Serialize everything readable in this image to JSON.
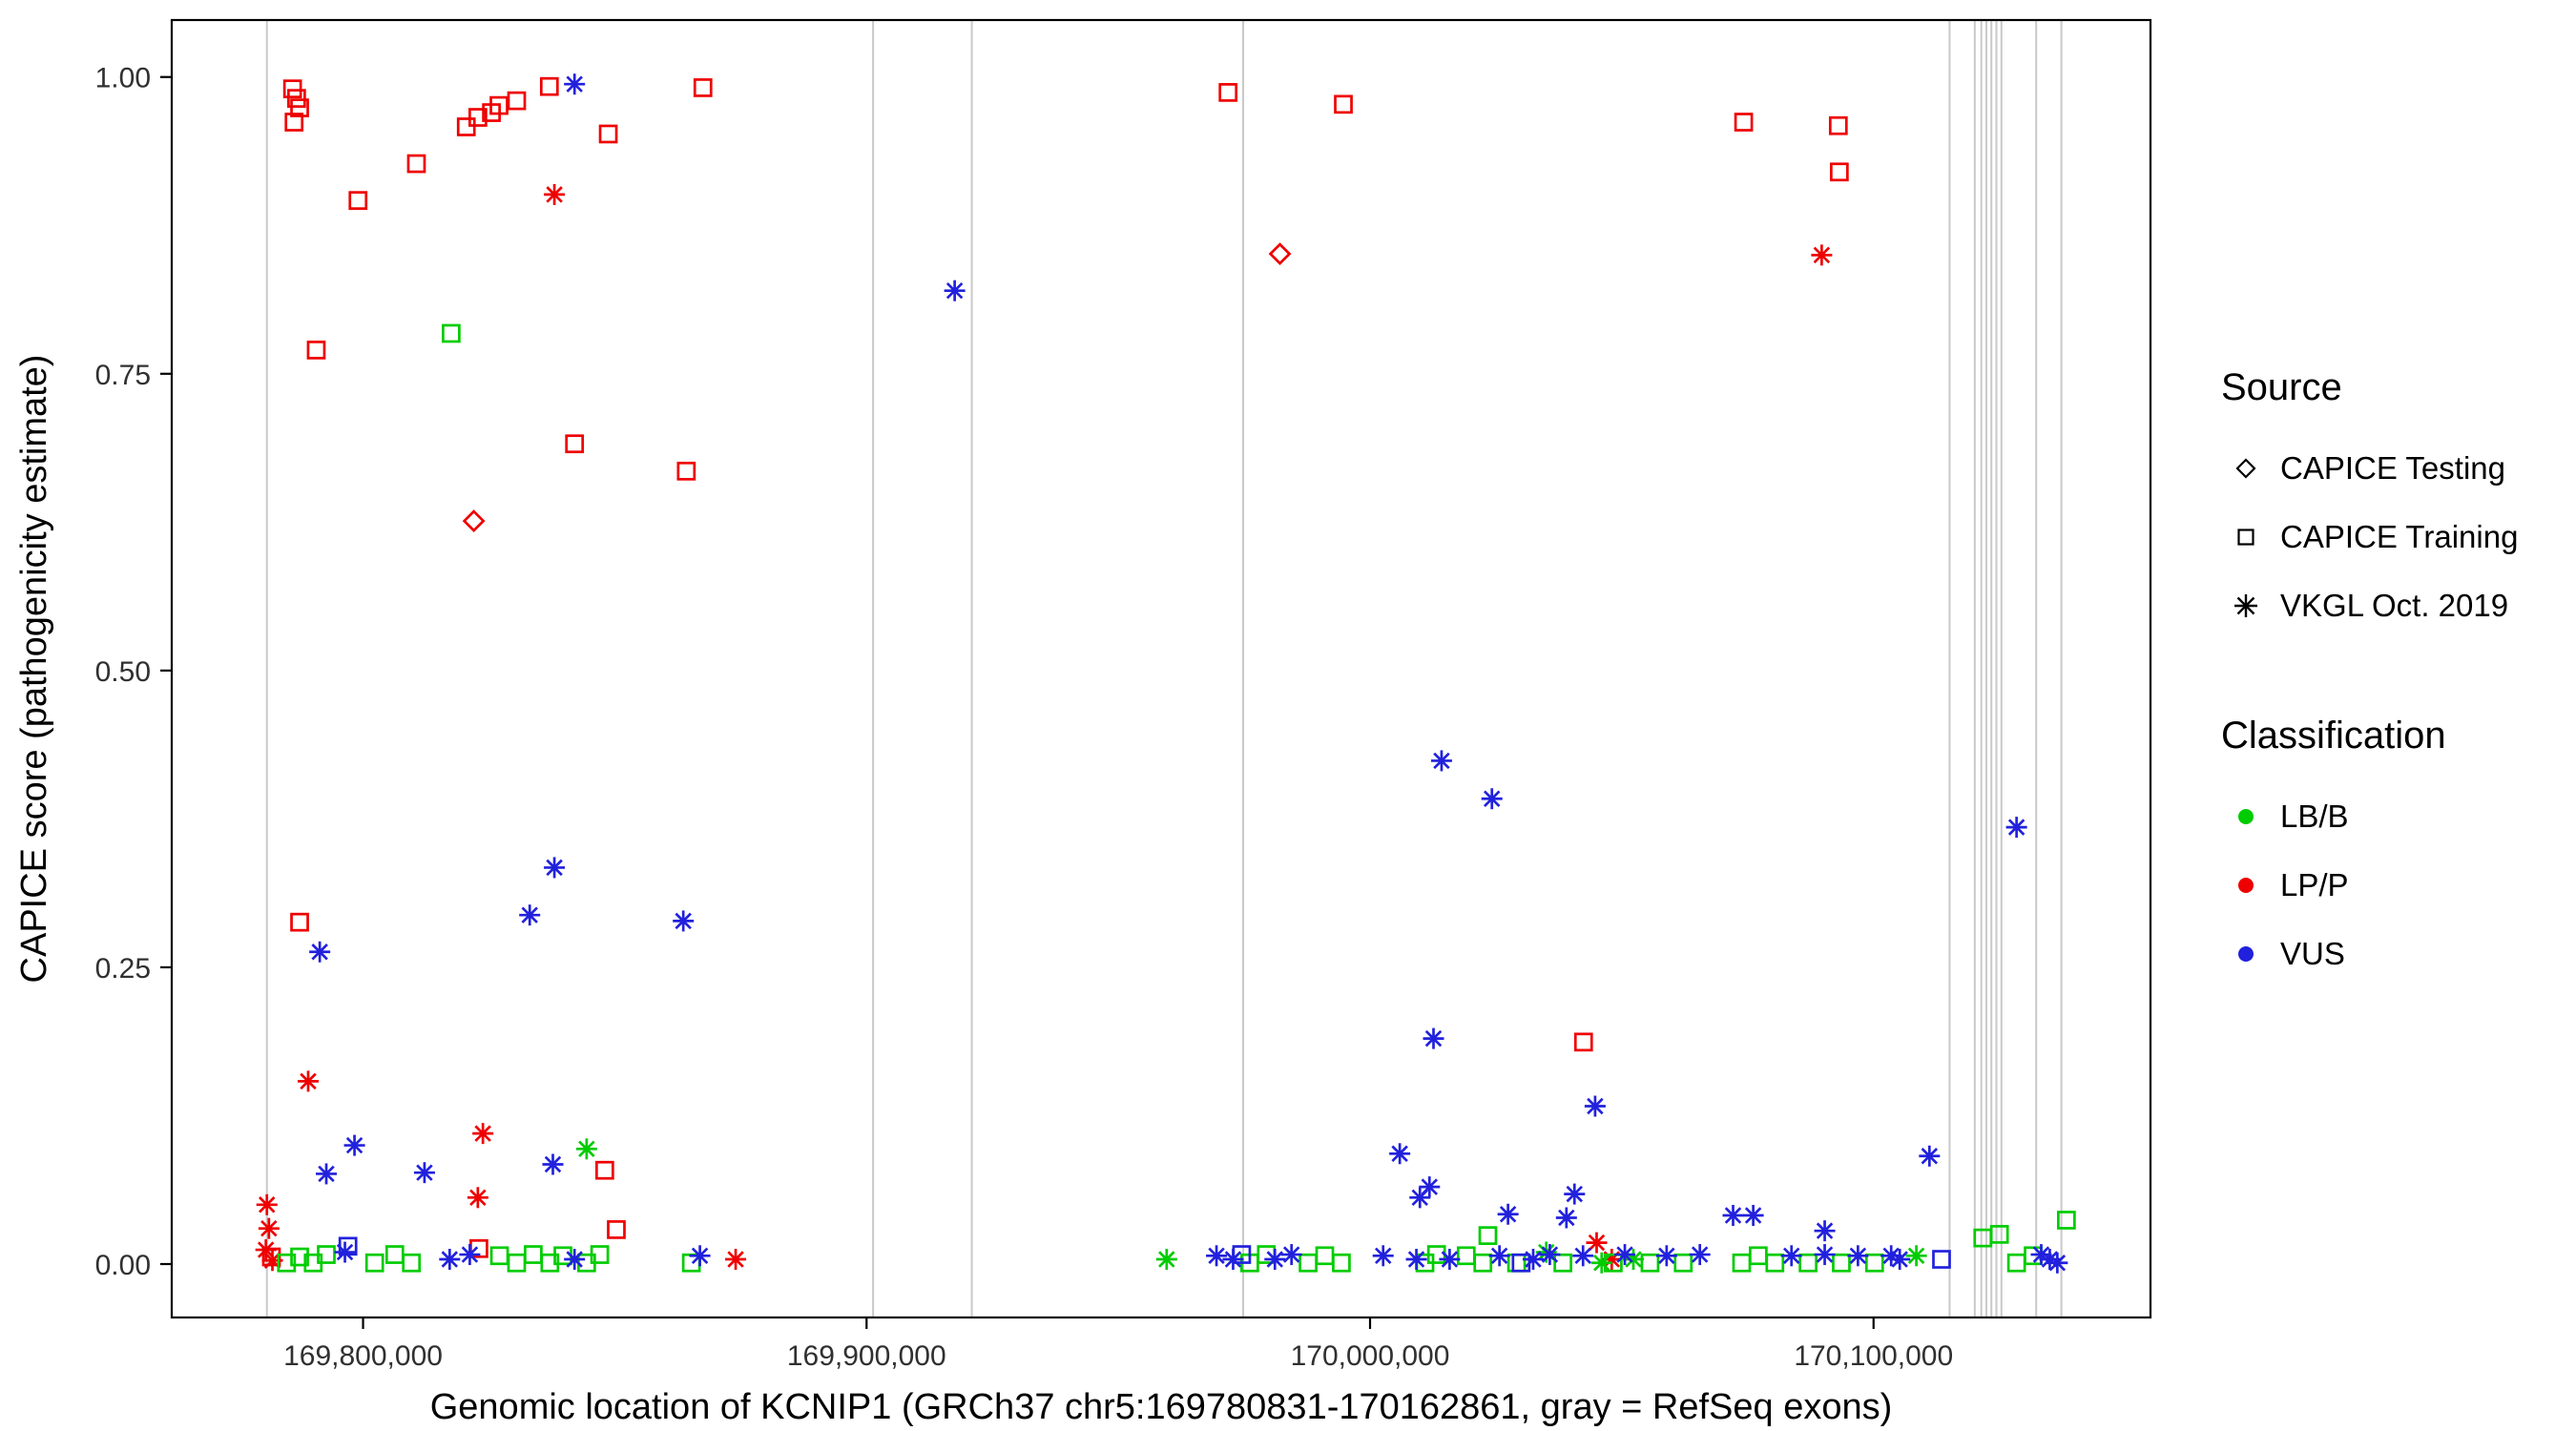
{
  "chart_data": {
    "type": "scatter",
    "title": "",
    "xlabel": "Genomic location of KCNIP1 (GRCh37 chr5:169780831-170162861, gray = RefSeq exons)",
    "ylabel": "CAPICE score (pathogenicity estimate)",
    "xlim": [
      169762000,
      170155000
    ],
    "ylim": [
      -0.045,
      1.048
    ],
    "x_ticks": [
      {
        "value": 169800000,
        "label": "169,800,000"
      },
      {
        "value": 169900000,
        "label": "169,900,000"
      },
      {
        "value": 170000000,
        "label": "170,000,000"
      },
      {
        "value": 170100000,
        "label": "170,100,000"
      }
    ],
    "y_ticks": [
      {
        "value": 0.0,
        "label": "0.00"
      },
      {
        "value": 0.25,
        "label": "0.25"
      },
      {
        "value": 0.5,
        "label": "0.50"
      },
      {
        "value": 0.75,
        "label": "0.75"
      },
      {
        "value": 1.0,
        "label": "1.00"
      }
    ],
    "exon_color": "#c9c9c9",
    "exon_positions": [
      169780900,
      169901300,
      169920900,
      169974800,
      170115100,
      170120100,
      170121400,
      170122400,
      170123400,
      170124400,
      170125400,
      170132300,
      170137300
    ],
    "colors": {
      "LB/B": "#00cc00",
      "LP/P": "#ee0000",
      "VUS": "#2121dd"
    },
    "legend": {
      "source_title": "Source",
      "source_items": [
        {
          "label": "CAPICE Testing",
          "shape": "diamond"
        },
        {
          "label": "CAPICE Training",
          "shape": "square"
        },
        {
          "label": "VKGL Oct. 2019",
          "shape": "asterisk"
        }
      ],
      "classification_title": "Classification",
      "classification_items": [
        {
          "label": "LB/B",
          "color": "#00cc00"
        },
        {
          "label": "LP/P",
          "color": "#ee0000"
        },
        {
          "label": "VUS",
          "color": "#2121dd"
        }
      ]
    },
    "points": [
      {
        "x": 169786000,
        "y": 0.99,
        "shape": "square",
        "class": "LP/P"
      },
      {
        "x": 169786800,
        "y": 0.982,
        "shape": "square",
        "class": "LP/P"
      },
      {
        "x": 169787400,
        "y": 0.974,
        "shape": "square",
        "class": "LP/P"
      },
      {
        "x": 169786300,
        "y": 0.962,
        "shape": "square",
        "class": "LP/P"
      },
      {
        "x": 169799000,
        "y": 0.896,
        "shape": "square",
        "class": "LP/P"
      },
      {
        "x": 169790700,
        "y": 0.77,
        "shape": "square",
        "class": "LP/P"
      },
      {
        "x": 169810600,
        "y": 0.927,
        "shape": "square",
        "class": "LP/P"
      },
      {
        "x": 169820500,
        "y": 0.958,
        "shape": "square",
        "class": "LP/P"
      },
      {
        "x": 169822800,
        "y": 0.966,
        "shape": "square",
        "class": "LP/P"
      },
      {
        "x": 169825500,
        "y": 0.97,
        "shape": "square",
        "class": "LP/P"
      },
      {
        "x": 169827000,
        "y": 0.976,
        "shape": "square",
        "class": "LP/P"
      },
      {
        "x": 169830500,
        "y": 0.98,
        "shape": "square",
        "class": "LP/P"
      },
      {
        "x": 169837000,
        "y": 0.992,
        "shape": "square",
        "class": "LP/P"
      },
      {
        "x": 169848700,
        "y": 0.952,
        "shape": "square",
        "class": "LP/P"
      },
      {
        "x": 169842000,
        "y": 0.691,
        "shape": "square",
        "class": "LP/P"
      },
      {
        "x": 169864200,
        "y": 0.668,
        "shape": "square",
        "class": "LP/P"
      },
      {
        "x": 169867500,
        "y": 0.991,
        "shape": "square",
        "class": "LP/P"
      },
      {
        "x": 169971800,
        "y": 0.987,
        "shape": "square",
        "class": "LP/P"
      },
      {
        "x": 169994700,
        "y": 0.977,
        "shape": "square",
        "class": "LP/P"
      },
      {
        "x": 170074200,
        "y": 0.962,
        "shape": "square",
        "class": "LP/P"
      },
      {
        "x": 170093000,
        "y": 0.959,
        "shape": "square",
        "class": "LP/P"
      },
      {
        "x": 170093200,
        "y": 0.92,
        "shape": "square",
        "class": "LP/P"
      },
      {
        "x": 169787400,
        "y": 0.288,
        "shape": "square",
        "class": "LP/P"
      },
      {
        "x": 170042400,
        "y": 0.187,
        "shape": "square",
        "class": "LP/P"
      },
      {
        "x": 169848000,
        "y": 0.079,
        "shape": "square",
        "class": "LP/P"
      },
      {
        "x": 169850300,
        "y": 0.029,
        "shape": "square",
        "class": "LP/P"
      },
      {
        "x": 169781800,
        "y": 0.006,
        "shape": "square",
        "class": "LP/P"
      },
      {
        "x": 169823000,
        "y": 0.013,
        "shape": "square",
        "class": "LP/P"
      },
      {
        "x": 169822000,
        "y": 0.626,
        "shape": "diamond",
        "class": "LP/P"
      },
      {
        "x": 169982100,
        "y": 0.851,
        "shape": "diamond",
        "class": "LP/P"
      },
      {
        "x": 169838000,
        "y": 0.901,
        "shape": "asterisk",
        "class": "LP/P"
      },
      {
        "x": 170089700,
        "y": 0.85,
        "shape": "asterisk",
        "class": "LP/P"
      },
      {
        "x": 169789100,
        "y": 0.154,
        "shape": "asterisk",
        "class": "LP/P"
      },
      {
        "x": 169823800,
        "y": 0.11,
        "shape": "asterisk",
        "class": "LP/P"
      },
      {
        "x": 169822800,
        "y": 0.056,
        "shape": "asterisk",
        "class": "LP/P"
      },
      {
        "x": 169780900,
        "y": 0.05,
        "shape": "asterisk",
        "class": "LP/P"
      },
      {
        "x": 169781300,
        "y": 0.03,
        "shape": "asterisk",
        "class": "LP/P"
      },
      {
        "x": 169780700,
        "y": 0.012,
        "shape": "asterisk",
        "class": "LP/P"
      },
      {
        "x": 169782000,
        "y": 0.003,
        "shape": "asterisk",
        "class": "LP/P"
      },
      {
        "x": 169874000,
        "y": 0.004,
        "shape": "asterisk",
        "class": "LP/P"
      },
      {
        "x": 170045000,
        "y": 0.018,
        "shape": "asterisk",
        "class": "LP/P"
      },
      {
        "x": 170048000,
        "y": 0.004,
        "shape": "asterisk",
        "class": "LP/P"
      },
      {
        "x": 169817500,
        "y": 0.784,
        "shape": "square",
        "class": "LB/B"
      },
      {
        "x": 170121700,
        "y": 0.022,
        "shape": "square",
        "class": "LB/B"
      },
      {
        "x": 170125000,
        "y": 0.025,
        "shape": "square",
        "class": "LB/B"
      },
      {
        "x": 170138300,
        "y": 0.037,
        "shape": "square",
        "class": "LB/B"
      },
      {
        "x": 170023400,
        "y": 0.024,
        "shape": "square",
        "class": "LB/B"
      },
      {
        "x": 169784800,
        "y": 0.001,
        "shape": "square",
        "class": "LB/B"
      },
      {
        "x": 169787400,
        "y": 0.006,
        "shape": "square",
        "class": "LB/B"
      },
      {
        "x": 169790100,
        "y": 0.001,
        "shape": "square",
        "class": "LB/B"
      },
      {
        "x": 169792700,
        "y": 0.008,
        "shape": "square",
        "class": "LB/B"
      },
      {
        "x": 169802300,
        "y": 0.001,
        "shape": "square",
        "class": "LB/B"
      },
      {
        "x": 169806300,
        "y": 0.008,
        "shape": "square",
        "class": "LB/B"
      },
      {
        "x": 169809600,
        "y": 0.001,
        "shape": "square",
        "class": "LB/B"
      },
      {
        "x": 169827100,
        "y": 0.007,
        "shape": "square",
        "class": "LB/B"
      },
      {
        "x": 169830500,
        "y": 0.001,
        "shape": "square",
        "class": "LB/B"
      },
      {
        "x": 169833800,
        "y": 0.008,
        "shape": "square",
        "class": "LB/B"
      },
      {
        "x": 169837100,
        "y": 0.001,
        "shape": "square",
        "class": "LB/B"
      },
      {
        "x": 169839700,
        "y": 0.007,
        "shape": "square",
        "class": "LB/B"
      },
      {
        "x": 169844400,
        "y": 0.001,
        "shape": "square",
        "class": "LB/B"
      },
      {
        "x": 169847000,
        "y": 0.008,
        "shape": "square",
        "class": "LB/B"
      },
      {
        "x": 169865200,
        "y": 0.001,
        "shape": "square",
        "class": "LB/B"
      },
      {
        "x": 169976100,
        "y": 0.001,
        "shape": "square",
        "class": "LB/B"
      },
      {
        "x": 169979400,
        "y": 0.008,
        "shape": "square",
        "class": "LB/B"
      },
      {
        "x": 169987700,
        "y": 0.001,
        "shape": "square",
        "class": "LB/B"
      },
      {
        "x": 169991000,
        "y": 0.007,
        "shape": "square",
        "class": "LB/B"
      },
      {
        "x": 169994300,
        "y": 0.001,
        "shape": "square",
        "class": "LB/B"
      },
      {
        "x": 170010900,
        "y": 0.001,
        "shape": "square",
        "class": "LB/B"
      },
      {
        "x": 170013200,
        "y": 0.008,
        "shape": "square",
        "class": "LB/B"
      },
      {
        "x": 170019100,
        "y": 0.007,
        "shape": "square",
        "class": "LB/B"
      },
      {
        "x": 170022400,
        "y": 0.001,
        "shape": "square",
        "class": "LB/B"
      },
      {
        "x": 170029100,
        "y": 0.001,
        "shape": "square",
        "class": "LB/B"
      },
      {
        "x": 170038300,
        "y": 0.001,
        "shape": "square",
        "class": "LB/B"
      },
      {
        "x": 170048300,
        "y": 0.001,
        "shape": "square",
        "class": "LB/B"
      },
      {
        "x": 170055600,
        "y": 0.001,
        "shape": "square",
        "class": "LB/B"
      },
      {
        "x": 170062200,
        "y": 0.001,
        "shape": "square",
        "class": "LB/B"
      },
      {
        "x": 170073800,
        "y": 0.001,
        "shape": "square",
        "class": "LB/B"
      },
      {
        "x": 170077100,
        "y": 0.007,
        "shape": "square",
        "class": "LB/B"
      },
      {
        "x": 170080400,
        "y": 0.001,
        "shape": "square",
        "class": "LB/B"
      },
      {
        "x": 170087000,
        "y": 0.001,
        "shape": "square",
        "class": "LB/B"
      },
      {
        "x": 170093600,
        "y": 0.001,
        "shape": "square",
        "class": "LB/B"
      },
      {
        "x": 170100200,
        "y": 0.001,
        "shape": "square",
        "class": "LB/B"
      },
      {
        "x": 170128400,
        "y": 0.001,
        "shape": "square",
        "class": "LB/B"
      },
      {
        "x": 170131700,
        "y": 0.007,
        "shape": "square",
        "class": "LB/B"
      },
      {
        "x": 169844400,
        "y": 0.097,
        "shape": "asterisk",
        "class": "LB/B"
      },
      {
        "x": 169959600,
        "y": 0.004,
        "shape": "asterisk",
        "class": "LB/B"
      },
      {
        "x": 170052300,
        "y": 0.004,
        "shape": "asterisk",
        "class": "LB/B"
      },
      {
        "x": 170108500,
        "y": 0.007,
        "shape": "asterisk",
        "class": "LB/B"
      },
      {
        "x": 170035000,
        "y": 0.01,
        "shape": "asterisk",
        "class": "LB/B"
      },
      {
        "x": 170046000,
        "y": 0.001,
        "shape": "asterisk",
        "class": "LB/B"
      },
      {
        "x": 169842000,
        "y": 0.994,
        "shape": "asterisk",
        "class": "VUS"
      },
      {
        "x": 169917500,
        "y": 0.82,
        "shape": "asterisk",
        "class": "VUS"
      },
      {
        "x": 170014200,
        "y": 0.424,
        "shape": "asterisk",
        "class": "VUS"
      },
      {
        "x": 170024200,
        "y": 0.392,
        "shape": "asterisk",
        "class": "VUS"
      },
      {
        "x": 170128400,
        "y": 0.368,
        "shape": "asterisk",
        "class": "VUS"
      },
      {
        "x": 169838000,
        "y": 0.334,
        "shape": "asterisk",
        "class": "VUS"
      },
      {
        "x": 169833100,
        "y": 0.294,
        "shape": "asterisk",
        "class": "VUS"
      },
      {
        "x": 169863600,
        "y": 0.289,
        "shape": "asterisk",
        "class": "VUS"
      },
      {
        "x": 169791400,
        "y": 0.263,
        "shape": "asterisk",
        "class": "VUS"
      },
      {
        "x": 170012600,
        "y": 0.19,
        "shape": "asterisk",
        "class": "VUS"
      },
      {
        "x": 170044700,
        "y": 0.133,
        "shape": "asterisk",
        "class": "VUS"
      },
      {
        "x": 170111100,
        "y": 0.091,
        "shape": "asterisk",
        "class": "VUS"
      },
      {
        "x": 169798300,
        "y": 0.1,
        "shape": "asterisk",
        "class": "VUS"
      },
      {
        "x": 170005900,
        "y": 0.093,
        "shape": "asterisk",
        "class": "VUS"
      },
      {
        "x": 169837700,
        "y": 0.084,
        "shape": "asterisk",
        "class": "VUS"
      },
      {
        "x": 169792700,
        "y": 0.076,
        "shape": "asterisk",
        "class": "VUS"
      },
      {
        "x": 169812200,
        "y": 0.077,
        "shape": "asterisk",
        "class": "VUS"
      },
      {
        "x": 170011800,
        "y": 0.065,
        "shape": "asterisk",
        "class": "VUS"
      },
      {
        "x": 170009900,
        "y": 0.056,
        "shape": "asterisk",
        "class": "VUS"
      },
      {
        "x": 170040600,
        "y": 0.059,
        "shape": "asterisk",
        "class": "VUS"
      },
      {
        "x": 170027400,
        "y": 0.042,
        "shape": "asterisk",
        "class": "VUS"
      },
      {
        "x": 170039000,
        "y": 0.039,
        "shape": "asterisk",
        "class": "VUS"
      },
      {
        "x": 170072100,
        "y": 0.041,
        "shape": "asterisk",
        "class": "VUS"
      },
      {
        "x": 170076100,
        "y": 0.041,
        "shape": "asterisk",
        "class": "VUS"
      },
      {
        "x": 170090300,
        "y": 0.028,
        "shape": "asterisk",
        "class": "VUS"
      },
      {
        "x": 169796400,
        "y": 0.01,
        "shape": "asterisk",
        "class": "VUS"
      },
      {
        "x": 169817200,
        "y": 0.004,
        "shape": "asterisk",
        "class": "VUS"
      },
      {
        "x": 169821200,
        "y": 0.008,
        "shape": "asterisk",
        "class": "VUS"
      },
      {
        "x": 169842000,
        "y": 0.004,
        "shape": "asterisk",
        "class": "VUS"
      },
      {
        "x": 169866900,
        "y": 0.007,
        "shape": "asterisk",
        "class": "VUS"
      },
      {
        "x": 169969500,
        "y": 0.007,
        "shape": "asterisk",
        "class": "VUS"
      },
      {
        "x": 169972800,
        "y": 0.004,
        "shape": "asterisk",
        "class": "VUS"
      },
      {
        "x": 169981100,
        "y": 0.004,
        "shape": "asterisk",
        "class": "VUS"
      },
      {
        "x": 169984400,
        "y": 0.008,
        "shape": "asterisk",
        "class": "VUS"
      },
      {
        "x": 170002600,
        "y": 0.007,
        "shape": "asterisk",
        "class": "VUS"
      },
      {
        "x": 170009200,
        "y": 0.004,
        "shape": "asterisk",
        "class": "VUS"
      },
      {
        "x": 170015800,
        "y": 0.004,
        "shape": "asterisk",
        "class": "VUS"
      },
      {
        "x": 170025700,
        "y": 0.007,
        "shape": "asterisk",
        "class": "VUS"
      },
      {
        "x": 170032400,
        "y": 0.004,
        "shape": "asterisk",
        "class": "VUS"
      },
      {
        "x": 170035700,
        "y": 0.008,
        "shape": "asterisk",
        "class": "VUS"
      },
      {
        "x": 170042300,
        "y": 0.007,
        "shape": "asterisk",
        "class": "VUS"
      },
      {
        "x": 170050600,
        "y": 0.008,
        "shape": "asterisk",
        "class": "VUS"
      },
      {
        "x": 170058900,
        "y": 0.007,
        "shape": "asterisk",
        "class": "VUS"
      },
      {
        "x": 170065500,
        "y": 0.008,
        "shape": "asterisk",
        "class": "VUS"
      },
      {
        "x": 170083700,
        "y": 0.007,
        "shape": "asterisk",
        "class": "VUS"
      },
      {
        "x": 170090300,
        "y": 0.008,
        "shape": "asterisk",
        "class": "VUS"
      },
      {
        "x": 170096900,
        "y": 0.007,
        "shape": "asterisk",
        "class": "VUS"
      },
      {
        "x": 170103500,
        "y": 0.007,
        "shape": "asterisk",
        "class": "VUS"
      },
      {
        "x": 170105200,
        "y": 0.004,
        "shape": "asterisk",
        "class": "VUS"
      },
      {
        "x": 170133300,
        "y": 0.008,
        "shape": "asterisk",
        "class": "VUS"
      },
      {
        "x": 170135000,
        "y": 0.004,
        "shape": "asterisk",
        "class": "VUS"
      },
      {
        "x": 170136500,
        "y": 0.001,
        "shape": "asterisk",
        "class": "VUS"
      },
      {
        "x": 169974500,
        "y": 0.008,
        "shape": "square",
        "class": "VUS"
      },
      {
        "x": 170113500,
        "y": 0.004,
        "shape": "square",
        "class": "VUS"
      },
      {
        "x": 170030000,
        "y": 0.001,
        "shape": "square",
        "class": "VUS"
      },
      {
        "x": 169797000,
        "y": 0.015,
        "shape": "square",
        "class": "VUS"
      }
    ]
  }
}
